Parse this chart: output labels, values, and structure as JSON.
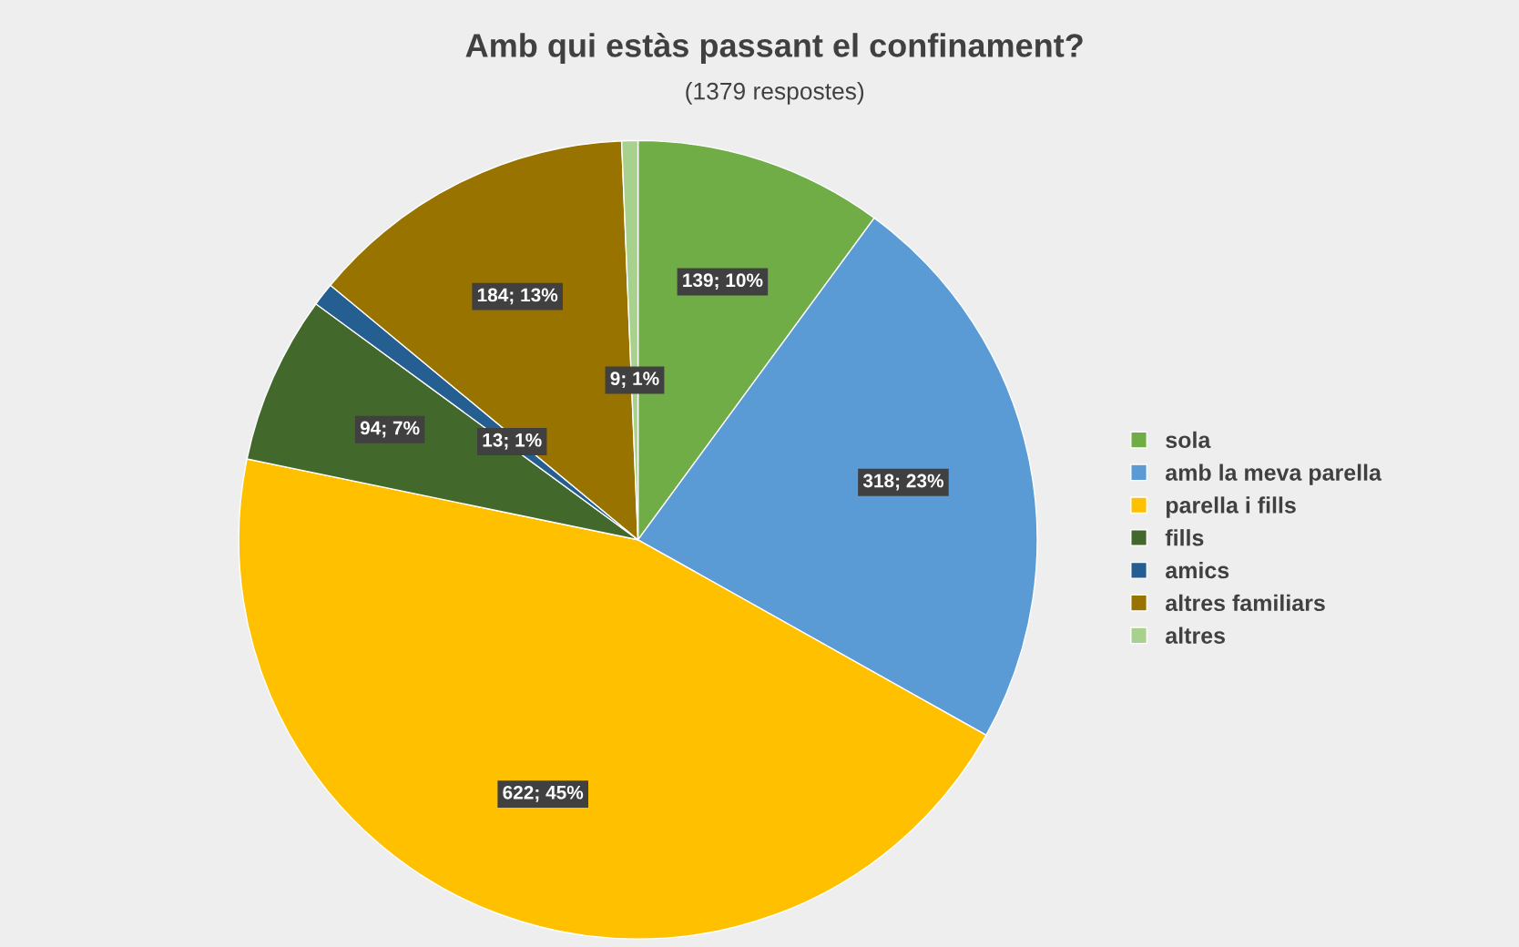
{
  "chart_data": {
    "type": "pie",
    "title": "Amb qui estàs passant el confinament?",
    "subtitle": "(1379 respostes)",
    "categories": [
      "sola",
      "amb la meva parella",
      "parella i fills",
      "fills",
      "amics",
      "altres familiars",
      "altres"
    ],
    "values": [
      139,
      318,
      622,
      94,
      13,
      184,
      9
    ],
    "colors": [
      "#70ad47",
      "#5b9bd5",
      "#ffc000",
      "#43682b",
      "#255e91",
      "#997300",
      "#a9d18e"
    ],
    "value_labels": [
      "139; 10%",
      "318; 23%",
      "622; 45%",
      "94; 7%",
      "13; 1%",
      "184; 13%",
      "9; 1%"
    ],
    "legend": "right"
  }
}
